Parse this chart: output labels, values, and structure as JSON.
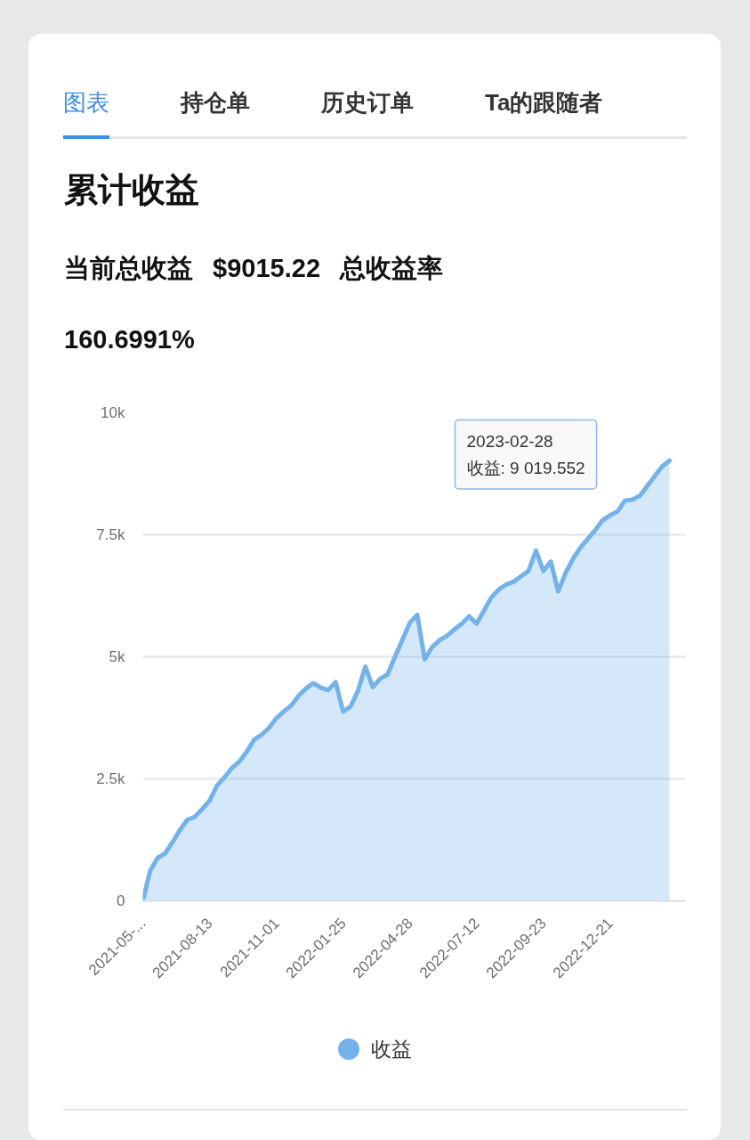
{
  "chart_data": {
    "type": "area",
    "title": "累计收益",
    "subtitle": "当前总收益 $9015.22 总收益率 160.6991%",
    "annotations": [
      "图表",
      "持仓单",
      "历史订单",
      "Ta的跟随者",
      "2023-02-28\n收益: 9 019.552"
    ],
    "categories": [
      "2021-05-...",
      null,
      null,
      null,
      null,
      null,
      null,
      null,
      null,
      "2021-08-13",
      null,
      null,
      null,
      null,
      null,
      null,
      null,
      null,
      "2021-11-01",
      null,
      null,
      null,
      null,
      null,
      null,
      null,
      null,
      "2022-01-25",
      null,
      null,
      null,
      null,
      null,
      null,
      null,
      null,
      "2022-04-28",
      null,
      null,
      null,
      null,
      null,
      null,
      null,
      null,
      "2022-07-12",
      null,
      null,
      null,
      null,
      null,
      null,
      null,
      null,
      "2022-09-23",
      null,
      null,
      null,
      null,
      null,
      null,
      null,
      null,
      "2022-12-21",
      null,
      null,
      null,
      null,
      null,
      null,
      null,
      null
    ],
    "series": [
      {
        "name": "收益",
        "color": "#74b2ea",
        "values": [
          0,
          620,
          880,
          970,
          1200,
          1450,
          1660,
          1720,
          1880,
          2050,
          2360,
          2530,
          2720,
          2850,
          3050,
          3300,
          3400,
          3540,
          3740,
          3880,
          4000,
          4200,
          4350,
          4460,
          4370,
          4320,
          4480,
          3880,
          3980,
          4300,
          4800,
          4380,
          4550,
          4640,
          5000,
          5350,
          5700,
          5860,
          4950,
          5200,
          5340,
          5430,
          5560,
          5680,
          5830,
          5680,
          5950,
          6220,
          6380,
          6480,
          6540,
          6650,
          6760,
          7180,
          6760,
          6950,
          6340,
          6720,
          7010,
          7240,
          7420,
          7600,
          7800,
          7900,
          7980,
          8200,
          8220,
          8300,
          8500,
          8700,
          8900,
          9019.552
        ]
      }
    ],
    "ylim": [
      0,
      10000
    ],
    "yticks": [
      0,
      {
        "value": 2500,
        "label": "2.5k"
      },
      {
        "value": 5000,
        "label": "5k"
      },
      {
        "value": 7500,
        "label": "7.5k"
      },
      {
        "value": 10000,
        "label": "10k"
      }
    ],
    "grid": "y",
    "legend": "bottom"
  }
}
